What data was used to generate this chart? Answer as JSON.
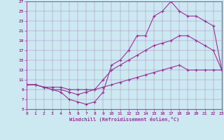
{
  "xlabel": "Windchill (Refroidissement éolien,°C)",
  "bg_color": "#cce8f0",
  "line_color": "#993399",
  "xlim": [
    0,
    23
  ],
  "ylim": [
    5,
    27
  ],
  "xticks": [
    0,
    1,
    2,
    3,
    4,
    5,
    6,
    7,
    8,
    9,
    10,
    11,
    12,
    13,
    14,
    15,
    16,
    17,
    18,
    19,
    20,
    21,
    22,
    23
  ],
  "yticks": [
    5,
    7,
    9,
    11,
    13,
    15,
    17,
    19,
    21,
    23,
    25,
    27
  ],
  "lines": [
    {
      "x": [
        0,
        1,
        2,
        3,
        4,
        5,
        6,
        7,
        8,
        9,
        10,
        11,
        12,
        13,
        14,
        15,
        16,
        17,
        18,
        19,
        20,
        21,
        22,
        23
      ],
      "y": [
        10,
        10,
        9.5,
        9.5,
        9.5,
        9,
        9,
        9,
        9,
        9.5,
        10,
        10.5,
        11,
        11.5,
        12,
        12.5,
        13,
        13.5,
        14,
        13,
        13,
        13,
        13,
        13
      ]
    },
    {
      "x": [
        0,
        1,
        2,
        3,
        4,
        5,
        6,
        7,
        8,
        9,
        10,
        11,
        12,
        13,
        14,
        15,
        16,
        17,
        18,
        19,
        20,
        21,
        22,
        23
      ],
      "y": [
        10,
        10,
        9.5,
        9,
        9,
        8.5,
        8,
        8.5,
        9,
        11,
        13,
        14,
        15,
        16,
        17,
        18,
        18.5,
        19,
        20,
        20,
        19,
        18,
        17,
        13
      ]
    },
    {
      "x": [
        0,
        1,
        2,
        3,
        4,
        5,
        6,
        7,
        8,
        9,
        10,
        11,
        12,
        13,
        14,
        15,
        16,
        17,
        18,
        19,
        20,
        21,
        22,
        23
      ],
      "y": [
        10,
        10,
        9.5,
        9,
        8.5,
        7,
        6.5,
        6,
        6.5,
        8.5,
        14,
        15,
        17,
        20,
        20,
        24,
        25,
        27,
        25,
        24,
        24,
        23,
        22,
        13
      ]
    }
  ]
}
